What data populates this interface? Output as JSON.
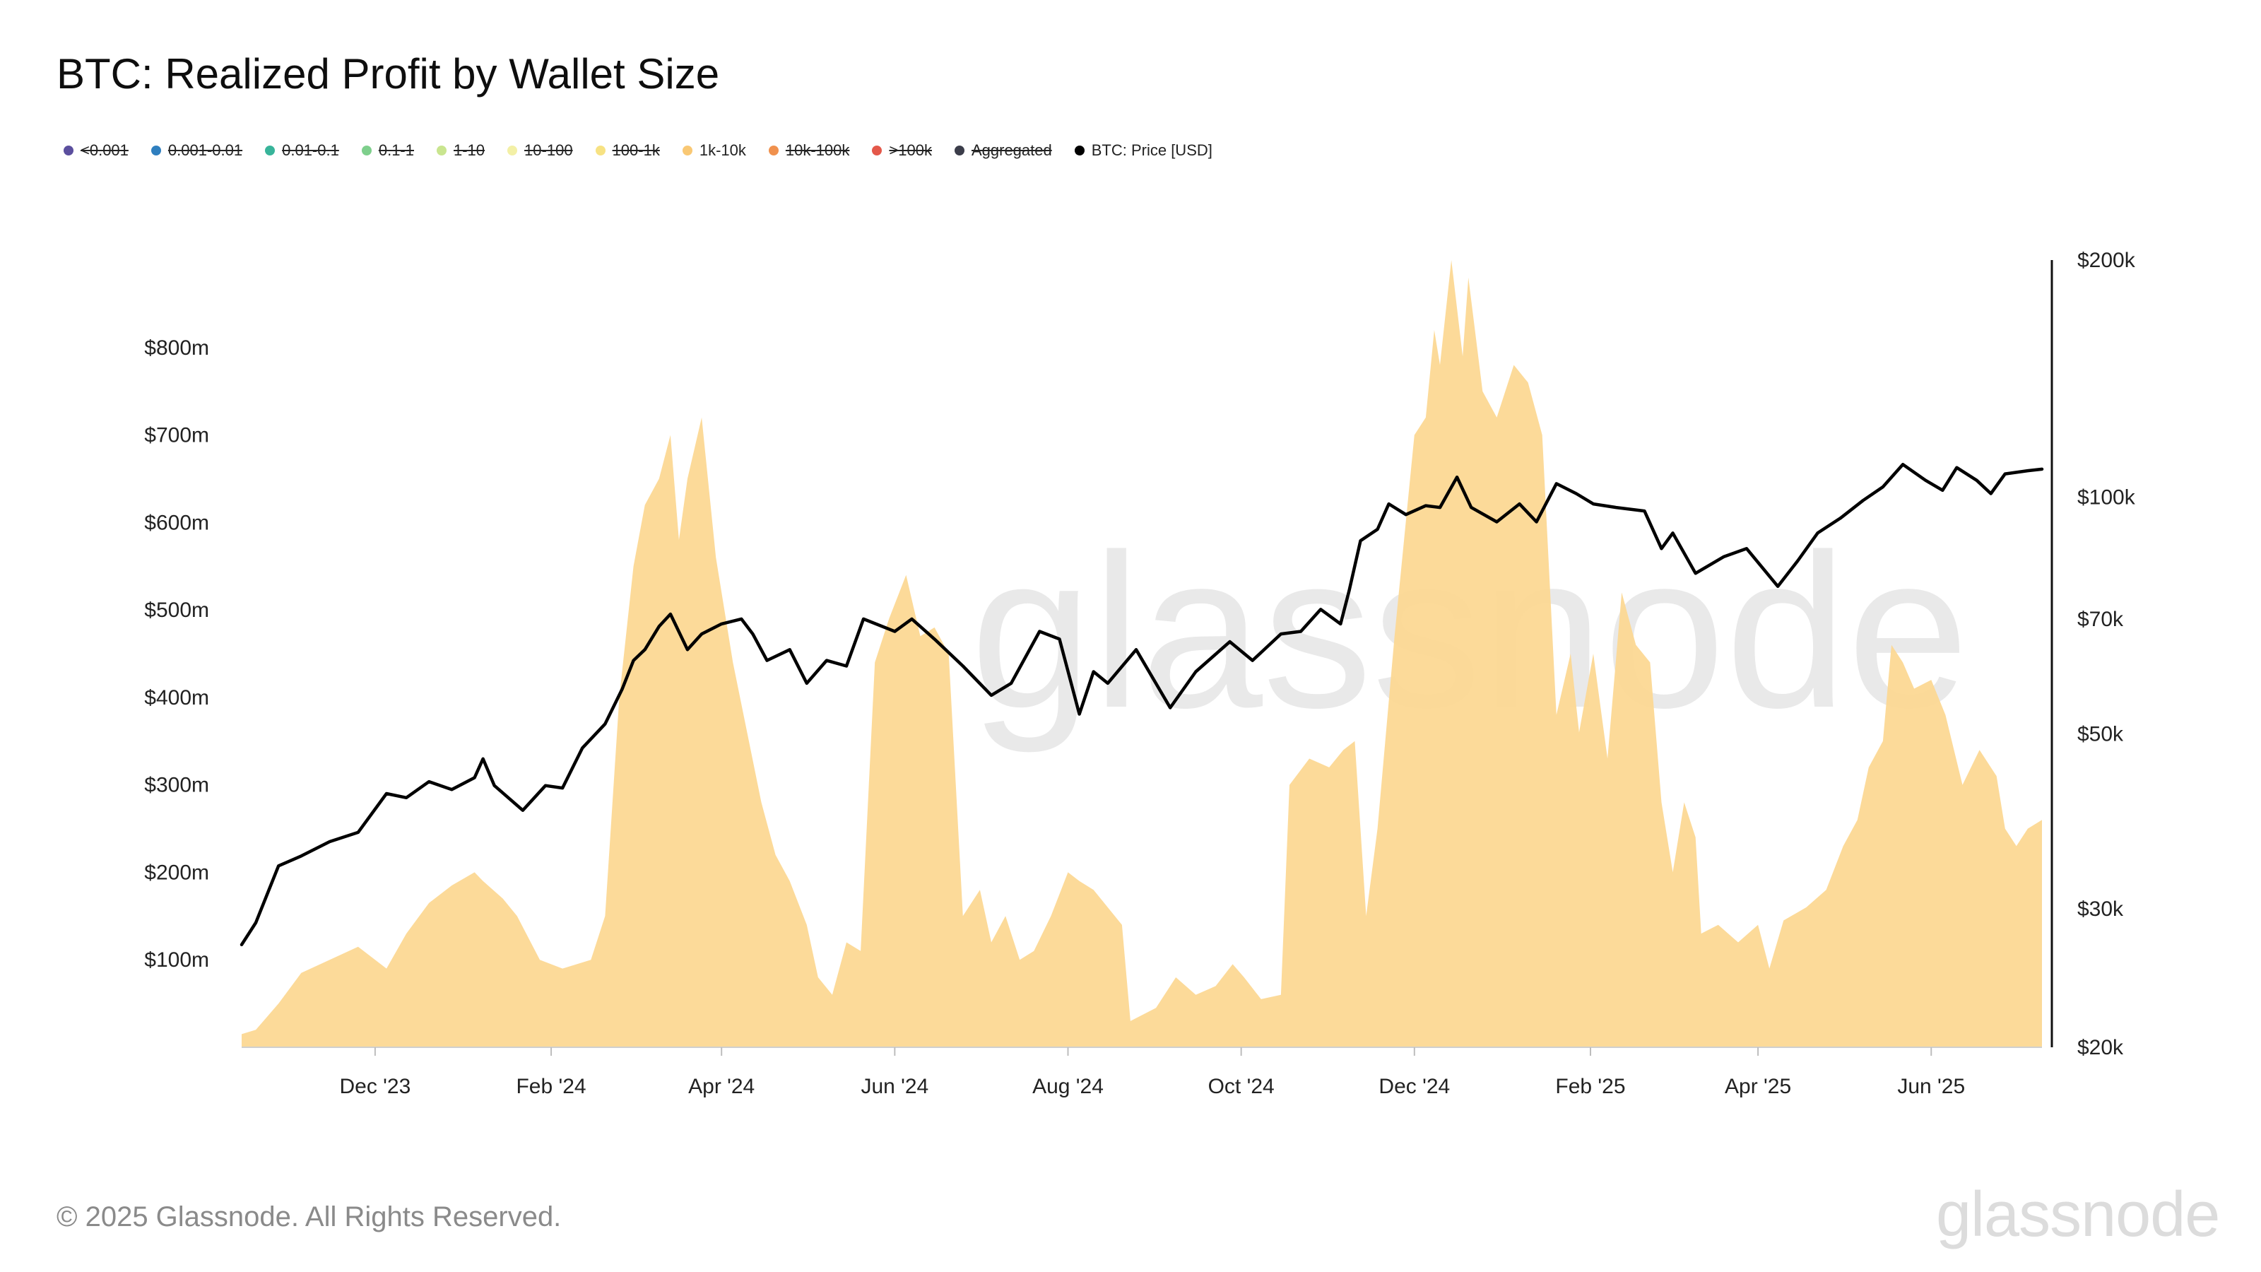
{
  "title": "BTC: Realized Profit by Wallet Size",
  "legend": [
    {
      "label": "<0.001",
      "color": "#5b4f9e",
      "active": false
    },
    {
      "label": "0.001-0.01",
      "color": "#2f7fbf",
      "active": false
    },
    {
      "label": "0.01-0.1",
      "color": "#38b49a",
      "active": false
    },
    {
      "label": "0.1-1",
      "color": "#7ecf8c",
      "active": false
    },
    {
      "label": "1-10",
      "color": "#c9e58f",
      "active": false
    },
    {
      "label": "10-100",
      "color": "#f3f0a6",
      "active": false
    },
    {
      "label": "100-1k",
      "color": "#f7e283",
      "active": false
    },
    {
      "label": "1k-10k",
      "color": "#f9c874",
      "active": true
    },
    {
      "label": "10k-100k",
      "color": "#f0914e",
      "active": false
    },
    {
      "label": ">100k",
      "color": "#e4584a",
      "active": false
    },
    {
      "label": "Aggregated",
      "color": "#3b3d4a",
      "active": false
    },
    {
      "label": "BTC: Price [USD]",
      "color": "#000000",
      "active": true
    }
  ],
  "footer": "© 2025 Glassnode. All Rights Reserved.",
  "brand": "glassnode",
  "chart_data": {
    "type": "area",
    "x_type": "date",
    "x_ticks": [
      {
        "date": "2023-12-01",
        "label": "Dec '23"
      },
      {
        "date": "2024-02-01",
        "label": "Feb '24"
      },
      {
        "date": "2024-04-01",
        "label": "Apr '24"
      },
      {
        "date": "2024-06-01",
        "label": "Jun '24"
      },
      {
        "date": "2024-08-01",
        "label": "Aug '24"
      },
      {
        "date": "2024-10-01",
        "label": "Oct '24"
      },
      {
        "date": "2024-12-01",
        "label": "Dec '24"
      },
      {
        "date": "2025-02-01",
        "label": "Feb '25"
      },
      {
        "date": "2025-04-01",
        "label": "Apr '25"
      },
      {
        "date": "2025-06-01",
        "label": "Jun '25"
      }
    ],
    "x_range": [
      "2023-10-15",
      "2025-07-10"
    ],
    "y_left": {
      "min": 0,
      "max": 900000000,
      "ticks": [
        {
          "v": 100000000,
          "label": "$100m"
        },
        {
          "v": 200000000,
          "label": "$200m"
        },
        {
          "v": 300000000,
          "label": "$300m"
        },
        {
          "v": 400000000,
          "label": "$400m"
        },
        {
          "v": 500000000,
          "label": "$500m"
        },
        {
          "v": 600000000,
          "label": "$600m"
        },
        {
          "v": 700000000,
          "label": "$700m"
        },
        {
          "v": 800000000,
          "label": "$800m"
        }
      ]
    },
    "y_right": {
      "scale": "log",
      "min": 20000,
      "max": 200000,
      "ticks": [
        {
          "v": 20000,
          "label": "$20k"
        },
        {
          "v": 30000,
          "label": "$30k"
        },
        {
          "v": 50000,
          "label": "$50k"
        },
        {
          "v": 70000,
          "label": "$70k"
        },
        {
          "v": 100000,
          "label": "$100k"
        },
        {
          "v": 200000,
          "label": "$200k"
        }
      ]
    },
    "series": [
      {
        "name": "1k-10k",
        "axis": "left",
        "color": "#fcd894",
        "points": [
          [
            "2023-10-15",
            15000000
          ],
          [
            "2023-10-20",
            20000000
          ],
          [
            "2023-10-28",
            50000000
          ],
          [
            "2023-11-05",
            85000000
          ],
          [
            "2023-11-15",
            100000000
          ],
          [
            "2023-11-25",
            115000000
          ],
          [
            "2023-12-05",
            90000000
          ],
          [
            "2023-12-12",
            130000000
          ],
          [
            "2023-12-20",
            165000000
          ],
          [
            "2023-12-28",
            185000000
          ],
          [
            "2024-01-05",
            200000000
          ],
          [
            "2024-01-08",
            190000000
          ],
          [
            "2024-01-15",
            170000000
          ],
          [
            "2024-01-20",
            150000000
          ],
          [
            "2024-01-28",
            100000000
          ],
          [
            "2024-02-05",
            90000000
          ],
          [
            "2024-02-15",
            100000000
          ],
          [
            "2024-02-20",
            150000000
          ],
          [
            "2024-02-25",
            400000000
          ],
          [
            "2024-03-01",
            550000000
          ],
          [
            "2024-03-05",
            620000000
          ],
          [
            "2024-03-10",
            650000000
          ],
          [
            "2024-03-14",
            700000000
          ],
          [
            "2024-03-17",
            580000000
          ],
          [
            "2024-03-20",
            650000000
          ],
          [
            "2024-03-25",
            720000000
          ],
          [
            "2024-03-30",
            560000000
          ],
          [
            "2024-04-05",
            440000000
          ],
          [
            "2024-04-10",
            360000000
          ],
          [
            "2024-04-15",
            280000000
          ],
          [
            "2024-04-20",
            220000000
          ],
          [
            "2024-04-25",
            190000000
          ],
          [
            "2024-05-01",
            140000000
          ],
          [
            "2024-05-05",
            80000000
          ],
          [
            "2024-05-10",
            60000000
          ],
          [
            "2024-05-15",
            120000000
          ],
          [
            "2024-05-20",
            110000000
          ],
          [
            "2024-05-25",
            440000000
          ],
          [
            "2024-05-30",
            490000000
          ],
          [
            "2024-06-05",
            540000000
          ],
          [
            "2024-06-10",
            470000000
          ],
          [
            "2024-06-15",
            480000000
          ],
          [
            "2024-06-20",
            450000000
          ],
          [
            "2024-06-25",
            150000000
          ],
          [
            "2024-07-01",
            180000000
          ],
          [
            "2024-07-05",
            120000000
          ],
          [
            "2024-07-10",
            150000000
          ],
          [
            "2024-07-15",
            100000000
          ],
          [
            "2024-07-20",
            110000000
          ],
          [
            "2024-07-26",
            150000000
          ],
          [
            "2024-08-01",
            200000000
          ],
          [
            "2024-08-05",
            190000000
          ],
          [
            "2024-08-10",
            180000000
          ],
          [
            "2024-08-15",
            160000000
          ],
          [
            "2024-08-20",
            140000000
          ],
          [
            "2024-08-23",
            30000000
          ],
          [
            "2024-09-01",
            45000000
          ],
          [
            "2024-09-08",
            80000000
          ],
          [
            "2024-09-15",
            60000000
          ],
          [
            "2024-09-22",
            70000000
          ],
          [
            "2024-09-28",
            95000000
          ],
          [
            "2024-10-02",
            80000000
          ],
          [
            "2024-10-08",
            55000000
          ],
          [
            "2024-10-15",
            60000000
          ],
          [
            "2024-10-18",
            300000000
          ],
          [
            "2024-10-25",
            330000000
          ],
          [
            "2024-11-01",
            320000000
          ],
          [
            "2024-11-06",
            340000000
          ],
          [
            "2024-11-10",
            350000000
          ],
          [
            "2024-11-14",
            150000000
          ],
          [
            "2024-11-18",
            250000000
          ],
          [
            "2024-11-24",
            470000000
          ],
          [
            "2024-12-01",
            700000000
          ],
          [
            "2024-12-05",
            720000000
          ],
          [
            "2024-12-08",
            820000000
          ],
          [
            "2024-12-10",
            780000000
          ],
          [
            "2024-12-14",
            900000000
          ],
          [
            "2024-12-18",
            790000000
          ],
          [
            "2024-12-20",
            880000000
          ],
          [
            "2024-12-25",
            750000000
          ],
          [
            "2024-12-30",
            720000000
          ],
          [
            "2025-01-05",
            780000000
          ],
          [
            "2025-01-10",
            760000000
          ],
          [
            "2025-01-15",
            700000000
          ],
          [
            "2025-01-20",
            380000000
          ],
          [
            "2025-01-25",
            450000000
          ],
          [
            "2025-01-28",
            360000000
          ],
          [
            "2025-02-02",
            450000000
          ],
          [
            "2025-02-07",
            330000000
          ],
          [
            "2025-02-12",
            520000000
          ],
          [
            "2025-02-17",
            460000000
          ],
          [
            "2025-02-22",
            440000000
          ],
          [
            "2025-02-26",
            280000000
          ],
          [
            "2025-03-02",
            200000000
          ],
          [
            "2025-03-06",
            280000000
          ],
          [
            "2025-03-10",
            240000000
          ],
          [
            "2025-03-12",
            130000000
          ],
          [
            "2025-03-18",
            140000000
          ],
          [
            "2025-03-25",
            120000000
          ],
          [
            "2025-04-01",
            140000000
          ],
          [
            "2025-04-05",
            90000000
          ],
          [
            "2025-04-10",
            145000000
          ],
          [
            "2025-04-18",
            160000000
          ],
          [
            "2025-04-25",
            180000000
          ],
          [
            "2025-05-01",
            230000000
          ],
          [
            "2025-05-06",
            260000000
          ],
          [
            "2025-05-10",
            320000000
          ],
          [
            "2025-05-15",
            350000000
          ],
          [
            "2025-05-18",
            460000000
          ],
          [
            "2025-05-22",
            440000000
          ],
          [
            "2025-05-26",
            410000000
          ],
          [
            "2025-06-01",
            420000000
          ],
          [
            "2025-06-06",
            380000000
          ],
          [
            "2025-06-12",
            300000000
          ],
          [
            "2025-06-18",
            340000000
          ],
          [
            "2025-06-24",
            310000000
          ],
          [
            "2025-06-27",
            250000000
          ],
          [
            "2025-07-01",
            230000000
          ],
          [
            "2025-07-05",
            250000000
          ],
          [
            "2025-07-10",
            260000000
          ]
        ]
      },
      {
        "name": "BTC: Price [USD]",
        "axis": "right",
        "color": "#000000",
        "points": [
          [
            "2023-10-15",
            27000
          ],
          [
            "2023-10-20",
            28800
          ],
          [
            "2023-10-28",
            34000
          ],
          [
            "2023-11-05",
            35000
          ],
          [
            "2023-11-15",
            36500
          ],
          [
            "2023-11-25",
            37500
          ],
          [
            "2023-12-05",
            42000
          ],
          [
            "2023-12-12",
            41500
          ],
          [
            "2023-12-20",
            43500
          ],
          [
            "2023-12-28",
            42500
          ],
          [
            "2024-01-05",
            44000
          ],
          [
            "2024-01-08",
            46500
          ],
          [
            "2024-01-12",
            43000
          ],
          [
            "2024-01-22",
            40000
          ],
          [
            "2024-01-30",
            43000
          ],
          [
            "2024-02-05",
            42700
          ],
          [
            "2024-02-12",
            48000
          ],
          [
            "2024-02-20",
            51500
          ],
          [
            "2024-02-26",
            57000
          ],
          [
            "2024-03-01",
            62000
          ],
          [
            "2024-03-05",
            64000
          ],
          [
            "2024-03-10",
            68500
          ],
          [
            "2024-03-14",
            71000
          ],
          [
            "2024-03-20",
            64000
          ],
          [
            "2024-03-25",
            67000
          ],
          [
            "2024-04-01",
            69000
          ],
          [
            "2024-04-08",
            70000
          ],
          [
            "2024-04-12",
            67000
          ],
          [
            "2024-04-17",
            62000
          ],
          [
            "2024-04-25",
            64000
          ],
          [
            "2024-05-01",
            58000
          ],
          [
            "2024-05-08",
            62000
          ],
          [
            "2024-05-15",
            61000
          ],
          [
            "2024-05-21",
            70000
          ],
          [
            "2024-06-01",
            67500
          ],
          [
            "2024-06-07",
            70000
          ],
          [
            "2024-06-15",
            66000
          ],
          [
            "2024-06-25",
            61000
          ],
          [
            "2024-07-05",
            56000
          ],
          [
            "2024-07-12",
            58000
          ],
          [
            "2024-07-22",
            67500
          ],
          [
            "2024-07-29",
            66000
          ],
          [
            "2024-08-05",
            53000
          ],
          [
            "2024-08-10",
            60000
          ],
          [
            "2024-08-15",
            58000
          ],
          [
            "2024-08-25",
            64000
          ],
          [
            "2024-09-06",
            54000
          ],
          [
            "2024-09-15",
            60000
          ],
          [
            "2024-09-27",
            65500
          ],
          [
            "2024-10-05",
            62000
          ],
          [
            "2024-10-15",
            67000
          ],
          [
            "2024-10-22",
            67500
          ],
          [
            "2024-10-29",
            72000
          ],
          [
            "2024-11-05",
            69000
          ],
          [
            "2024-11-08",
            76000
          ],
          [
            "2024-11-12",
            88000
          ],
          [
            "2024-11-18",
            91000
          ],
          [
            "2024-11-22",
            98000
          ],
          [
            "2024-11-28",
            95000
          ],
          [
            "2024-12-05",
            97500
          ],
          [
            "2024-12-10",
            97000
          ],
          [
            "2024-12-16",
            106000
          ],
          [
            "2024-12-21",
            97000
          ],
          [
            "2024-12-30",
            93000
          ],
          [
            "2025-01-07",
            98000
          ],
          [
            "2025-01-13",
            93000
          ],
          [
            "2025-01-20",
            104000
          ],
          [
            "2025-01-27",
            101000
          ],
          [
            "2025-02-02",
            98000
          ],
          [
            "2025-02-10",
            97000
          ],
          [
            "2025-02-20",
            96000
          ],
          [
            "2025-02-26",
            86000
          ],
          [
            "2025-03-02",
            90000
          ],
          [
            "2025-03-10",
            80000
          ],
          [
            "2025-03-20",
            84000
          ],
          [
            "2025-03-28",
            86000
          ],
          [
            "2025-04-08",
            77000
          ],
          [
            "2025-04-15",
            83000
          ],
          [
            "2025-04-22",
            90000
          ],
          [
            "2025-04-30",
            94000
          ],
          [
            "2025-05-08",
            99000
          ],
          [
            "2025-05-15",
            103000
          ],
          [
            "2025-05-22",
            110000
          ],
          [
            "2025-05-30",
            105000
          ],
          [
            "2025-06-05",
            102000
          ],
          [
            "2025-06-10",
            109000
          ],
          [
            "2025-06-17",
            105000
          ],
          [
            "2025-06-22",
            101000
          ],
          [
            "2025-06-27",
            107000
          ],
          [
            "2025-07-05",
            108000
          ],
          [
            "2025-07-10",
            108500
          ]
        ]
      }
    ]
  }
}
